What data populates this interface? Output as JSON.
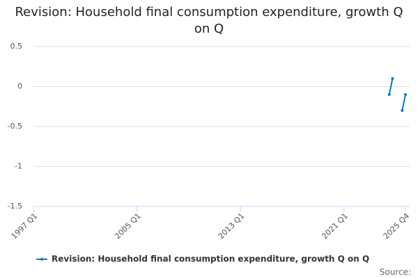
{
  "chart_data": {
    "type": "line",
    "title": "Revision: Household final consumption expenditure, growth Q on Q",
    "source": "Source:",
    "categories": [
      "1997 Q1",
      null,
      null,
      null,
      null,
      null,
      null,
      null,
      null,
      null,
      null,
      null,
      null,
      null,
      null,
      null,
      null,
      null,
      null,
      null,
      null,
      null,
      null,
      null,
      null,
      null,
      null,
      null,
      null,
      null,
      null,
      null,
      "2005 Q1",
      null,
      null,
      null,
      null,
      null,
      null,
      null,
      null,
      null,
      null,
      null,
      null,
      null,
      null,
      null,
      null,
      null,
      null,
      null,
      null,
      null,
      null,
      null,
      null,
      null,
      null,
      null,
      null,
      null,
      null,
      null,
      "2013 Q1",
      null,
      null,
      null,
      null,
      null,
      null,
      null,
      null,
      null,
      null,
      null,
      null,
      null,
      null,
      null,
      null,
      null,
      null,
      null,
      null,
      null,
      null,
      null,
      null,
      null,
      null,
      null,
      null,
      null,
      null,
      null,
      "2021 Q1",
      null,
      null,
      null,
      null,
      null,
      null,
      null,
      null,
      null,
      null,
      null,
      null,
      null,
      null,
      null,
      null,
      null,
      null,
      "2025 Q4"
    ],
    "series": [
      {
        "name": "Revision: Household final consumption expenditure, growth Q on Q",
        "color": "#0a7bbd",
        "values": [
          null,
          null,
          null,
          null,
          null,
          null,
          null,
          null,
          null,
          null,
          null,
          null,
          null,
          null,
          null,
          null,
          null,
          null,
          null,
          null,
          null,
          null,
          null,
          null,
          null,
          null,
          null,
          null,
          null,
          null,
          null,
          null,
          null,
          null,
          null,
          null,
          null,
          null,
          null,
          null,
          null,
          null,
          null,
          null,
          null,
          null,
          null,
          null,
          null,
          null,
          null,
          null,
          null,
          null,
          null,
          null,
          null,
          null,
          null,
          null,
          null,
          null,
          null,
          null,
          null,
          null,
          null,
          null,
          null,
          null,
          null,
          null,
          null,
          null,
          null,
          null,
          null,
          null,
          null,
          null,
          null,
          null,
          null,
          null,
          null,
          null,
          null,
          null,
          null,
          null,
          null,
          null,
          null,
          null,
          null,
          null,
          null,
          null,
          null,
          null,
          null,
          null,
          null,
          null,
          null,
          null,
          null,
          null,
          null,
          null,
          -0.1,
          0.1,
          null,
          null,
          -0.3,
          -0.1
        ]
      }
    ],
    "ylim": [
      -1.5,
      0.5
    ],
    "yticks": [
      0.5,
      0,
      -0.5,
      -1,
      -1.5
    ],
    "grid": true,
    "legend": "bottom"
  }
}
